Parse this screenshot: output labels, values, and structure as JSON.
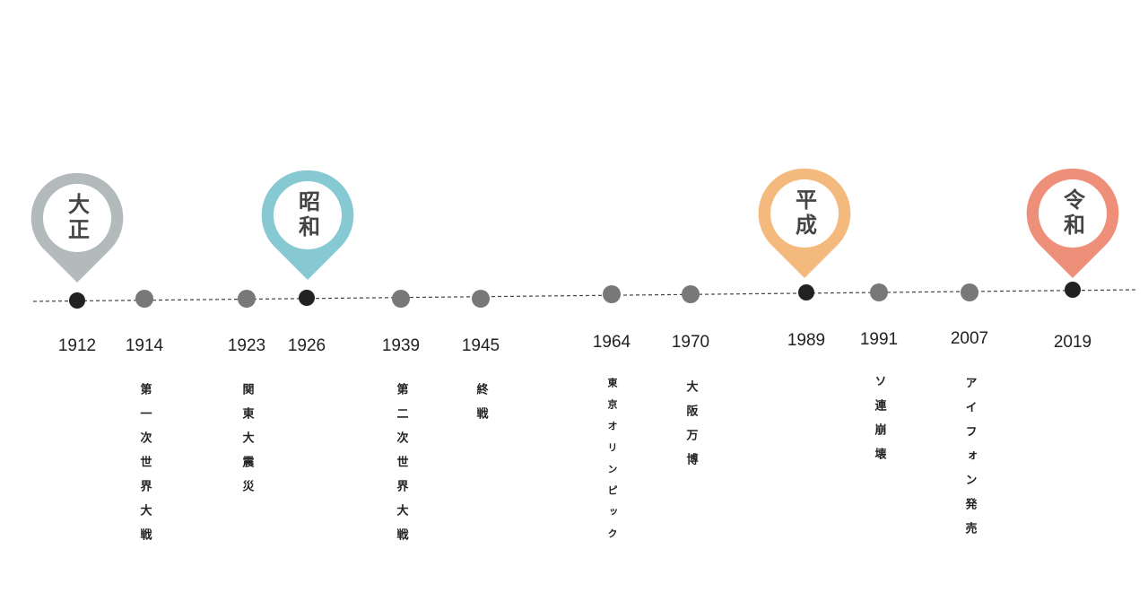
{
  "eras": [
    {
      "label": "大正",
      "color": "#b3babb"
    },
    {
      "label": "昭和",
      "color": "#86c9d3"
    },
    {
      "label": "平成",
      "color": "#f4b97c"
    },
    {
      "label": "令和",
      "color": "#ee9079"
    }
  ],
  "events": [
    {
      "year": "1912",
      "text": ""
    },
    {
      "year": "1914",
      "text": "第一次世界大戦"
    },
    {
      "year": "1923",
      "text": "関東大震災"
    },
    {
      "year": "1926",
      "text": ""
    },
    {
      "year": "1939",
      "text": "第二次世界大戦"
    },
    {
      "year": "1945",
      "text": "終戦"
    },
    {
      "year": "1964",
      "text": "東京オリンピック"
    },
    {
      "year": "1970",
      "text": "大阪万博"
    },
    {
      "year": "1989",
      "text": ""
    },
    {
      "year": "1991",
      "text": "ソ連崩壊"
    },
    {
      "year": "2007",
      "text": "アイフォン発売"
    },
    {
      "year": "2019",
      "text": ""
    }
  ],
  "colors": {
    "major_dot": "#222222",
    "minor_dot": "#787878",
    "line": "#444444"
  }
}
